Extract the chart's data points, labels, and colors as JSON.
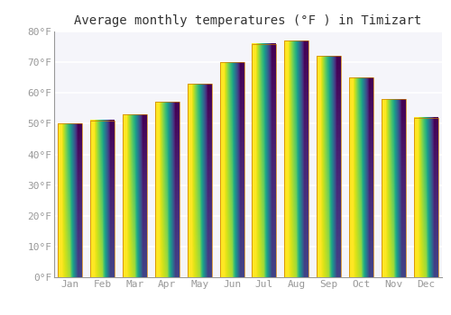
{
  "title": "Average monthly temperatures (°F ) in Timizart",
  "months": [
    "Jan",
    "Feb",
    "Mar",
    "Apr",
    "May",
    "Jun",
    "Jul",
    "Aug",
    "Sep",
    "Oct",
    "Nov",
    "Dec"
  ],
  "values": [
    50,
    51,
    53,
    57,
    63,
    70,
    76,
    77,
    72,
    65,
    58,
    52
  ],
  "bar_color": "#FFA500",
  "bar_edge_color": "#E08000",
  "ylim": [
    0,
    80
  ],
  "yticks": [
    0,
    10,
    20,
    30,
    40,
    50,
    60,
    70,
    80
  ],
  "ytick_labels": [
    "0°F",
    "10°F",
    "20°F",
    "30°F",
    "40°F",
    "50°F",
    "60°F",
    "70°F",
    "80°F"
  ],
  "background_color": "#FFFFFF",
  "grid_color": "#FFFFFF",
  "title_fontsize": 10,
  "tick_fontsize": 8,
  "tick_color": "#999999",
  "bar_width": 0.75
}
